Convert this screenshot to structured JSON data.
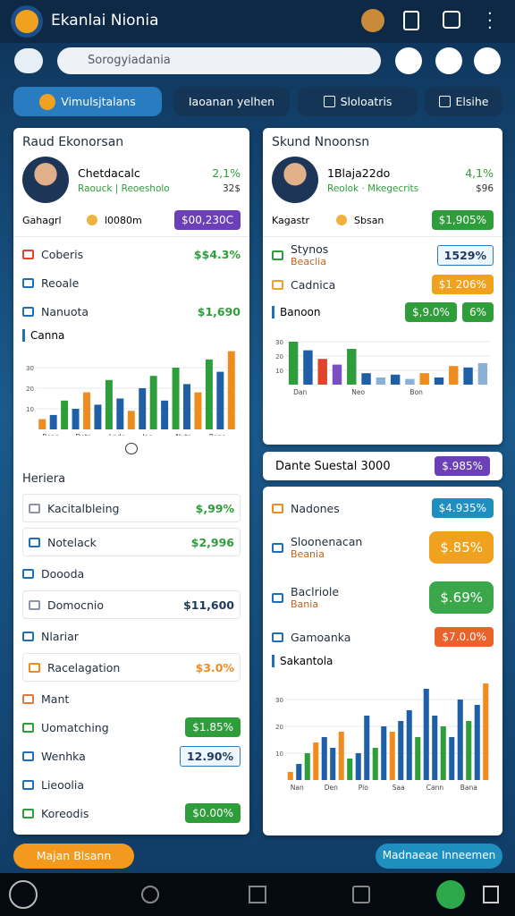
{
  "header": {
    "title": "Ekanlai Nionia"
  },
  "search": {
    "placeholder": "Sorogyiadania"
  },
  "tabs": [
    "Vimulsjtalans",
    "Iaoanan yelhen",
    "Sloloatris",
    "Elsihe"
  ],
  "left_card": {
    "title": "Raud Ekonorsan",
    "profile": {
      "name": "Chetdacalc",
      "change": "2,1%",
      "sub": "Raouck | Reoesholo",
      "sub_value": "32$",
      "tag": "Gahagrl",
      "meta": "l0080m",
      "badge": "$00,230C",
      "badge_color": "#6a3fb8"
    },
    "rows": [
      {
        "label": "Coberis",
        "value": "$$4.3%",
        "icon_color": "#e0452b",
        "value_color": "#2e9e3a"
      },
      {
        "label": "Reoale",
        "icon_color": "#1f6fb8"
      },
      {
        "label": "Nanuota",
        "value": "$1,690",
        "icon_color": "#1f6fb8",
        "value_color": "#2e9e3a"
      }
    ],
    "chart": {
      "title": "Canna",
      "ylim": [
        0,
        40
      ],
      "yticks": [
        10,
        20,
        30
      ],
      "values": [
        5,
        7,
        14,
        10,
        18,
        12,
        24,
        15,
        9,
        20,
        26,
        14,
        30,
        22,
        18,
        34,
        28,
        38
      ],
      "colors": [
        "#f08c1e",
        "#1f5fa8",
        "#2e9e3a",
        "#1f5fa8",
        "#f08c1e",
        "#1f5fa8",
        "#2e9e3a",
        "#1f5fa8",
        "#f08c1e",
        "#1f5fa8",
        "#2e9e3a",
        "#1f5fa8",
        "#2e9e3a",
        "#1f5fa8",
        "#f08c1e",
        "#2e9e3a",
        "#1f5fa8",
        "#f08c1e"
      ],
      "categories": [
        "Bean",
        null,
        null,
        "Deta",
        null,
        null,
        "Lnde",
        null,
        null,
        "Ino",
        null,
        null,
        "Nuta",
        null,
        null,
        "Bana",
        null,
        null
      ]
    },
    "section": "Heriera",
    "items": [
      {
        "label": "Kacitalbleing",
        "value": "$,99%",
        "icon_color": "#8a96a8",
        "value_color": "#2e9e3a",
        "boxed": true
      },
      {
        "label": "Notelack",
        "value": "$2,996",
        "icon_color": "#1f6fb8",
        "value_color": "#2e9e3a",
        "boxed": true
      },
      {
        "label": "Doooda",
        "icon_color": "#1f6fb8"
      },
      {
        "label": "Domocnio",
        "value": "$11,600",
        "icon_color": "#8a96a8",
        "value_color": "#1f3a5a",
        "boxed": true
      },
      {
        "label": "Nlariar",
        "icon_color": "#1f6fb8"
      },
      {
        "label": "Racelagation",
        "value": "$3.0%",
        "icon_color": "#f08c1e",
        "value_color": "#f08c1e",
        "boxed": true
      },
      {
        "label": "Mant",
        "icon_color": "#e07a3a"
      },
      {
        "label": "Uomatching",
        "value": "$1.85%",
        "icon_color": "#2e9e3a",
        "badge_color": "#2e9e3a"
      },
      {
        "label": "Wenhka",
        "value": "12.90%",
        "icon_color": "#1f6fb8",
        "value_color": "#1f3a5a",
        "outline": true
      },
      {
        "label": "Lieoolia",
        "icon_color": "#1f6fb8"
      },
      {
        "label": "Koreodis",
        "value": "$0.00%",
        "icon_color": "#2e9e3a",
        "badge_color": "#2e9e3a"
      }
    ]
  },
  "right_card": {
    "title": "Skund Nnoonsn",
    "profile": {
      "name": "1Blaja22do",
      "change": "4,1%",
      "sub": "Reolok · Mkegecrits",
      "sub_value": "$96",
      "tag": "Kagastr",
      "meta": "Sbsan",
      "badge": "$1,905%",
      "badge_color": "#2e9e3a"
    },
    "rows": [
      {
        "label": "Stynos",
        "sub": "Beaclia",
        "value": "1529%",
        "icon_color": "#2e9e3a",
        "value_color": "#1f3a5a",
        "outline": true
      },
      {
        "label": "Cadnica",
        "value": "$1 206%",
        "icon_color": "#f0a21e",
        "badge_color": "#f0a21e"
      }
    ],
    "chart": {
      "title": "Banoon",
      "badges": [
        {
          "value": "$,9.0%",
          "color": "#2e9e3a"
        },
        {
          "value": "6%",
          "color": "#2e9e3a"
        }
      ],
      "ylim": [
        0,
        40
      ],
      "yticks": [
        10,
        20,
        30
      ],
      "values": [
        30,
        24,
        18,
        14,
        25,
        8,
        5,
        7,
        4,
        8,
        5,
        13,
        12,
        15
      ],
      "colors": [
        "#2e9e3a",
        "#1f5fa8",
        "#e0452b",
        "#7a4fc0",
        "#2e9e3a",
        "#1f5fa8",
        "#8ab0d8",
        "#1f5fa8",
        "#8ab0d8",
        "#f08c1e",
        "#1f5fa8",
        "#f08c1e",
        "#1f5fa8",
        "#8ab0d8"
      ],
      "categories": [
        "Dan",
        null,
        null,
        null,
        "Neo",
        null,
        null,
        null,
        "Bon",
        null,
        null,
        null,
        null,
        null
      ]
    }
  },
  "banner": {
    "label": "Dante Suestal 3000",
    "value": "$.985%",
    "badge_color": "#6a3fb8"
  },
  "right_card2": {
    "rows": [
      {
        "label": "Nadones",
        "value": "$4.935%",
        "icon_color": "#f08c1e",
        "badge_color": "#1f8fc0"
      },
      {
        "label": "Sloonenacan",
        "sub": "Beania",
        "value": "$.85%",
        "icon_color": "#1f6fb8",
        "badge_color": "#f0a21e",
        "big": true
      },
      {
        "label": "Baclriole",
        "sub": "Bania",
        "value": "$.69%",
        "icon_color": "#1f6fb8",
        "badge_color": "#3aa84a",
        "big": true
      },
      {
        "label": "Gamoanka",
        "value": "$7.0.0%",
        "icon_color": "#1f6fb8",
        "badge_color": "#e8622a"
      }
    ],
    "chart": {
      "title": "Sakantola",
      "ylim": [
        0,
        40
      ],
      "yticks": [
        10,
        20,
        30
      ],
      "values": [
        3,
        6,
        10,
        14,
        16,
        12,
        18,
        8,
        10,
        24,
        12,
        20,
        18,
        22,
        26,
        16,
        34,
        24,
        20,
        16,
        30,
        22,
        28,
        36
      ],
      "colors": [
        "#f08c1e",
        "#1f5fa8",
        "#2e9e3a",
        "#f08c1e",
        "#1f5fa8",
        "#1f5fa8",
        "#f08c1e",
        "#2e9e3a",
        "#1f5fa8",
        "#1f5fa8",
        "#2e9e3a",
        "#1f5fa8",
        "#f08c1e",
        "#1f5fa8",
        "#1f5fa8",
        "#2e9e3a",
        "#1f5fa8",
        "#1f5fa8",
        "#2e9e3a",
        "#1f5fa8",
        "#1f5fa8",
        "#2e9e3a",
        "#1f5fa8",
        "#f08c1e"
      ],
      "categories": [
        "Nan",
        null,
        null,
        null,
        "Den",
        null,
        null,
        null,
        "Pio",
        null,
        null,
        null,
        "Saa",
        null,
        null,
        null,
        "Cann",
        null,
        null,
        null,
        "Bana",
        null,
        null,
        null
      ]
    }
  },
  "footer": {
    "left_button": "Majan Blsann",
    "right_button": "Madnaeae Inneemen"
  }
}
